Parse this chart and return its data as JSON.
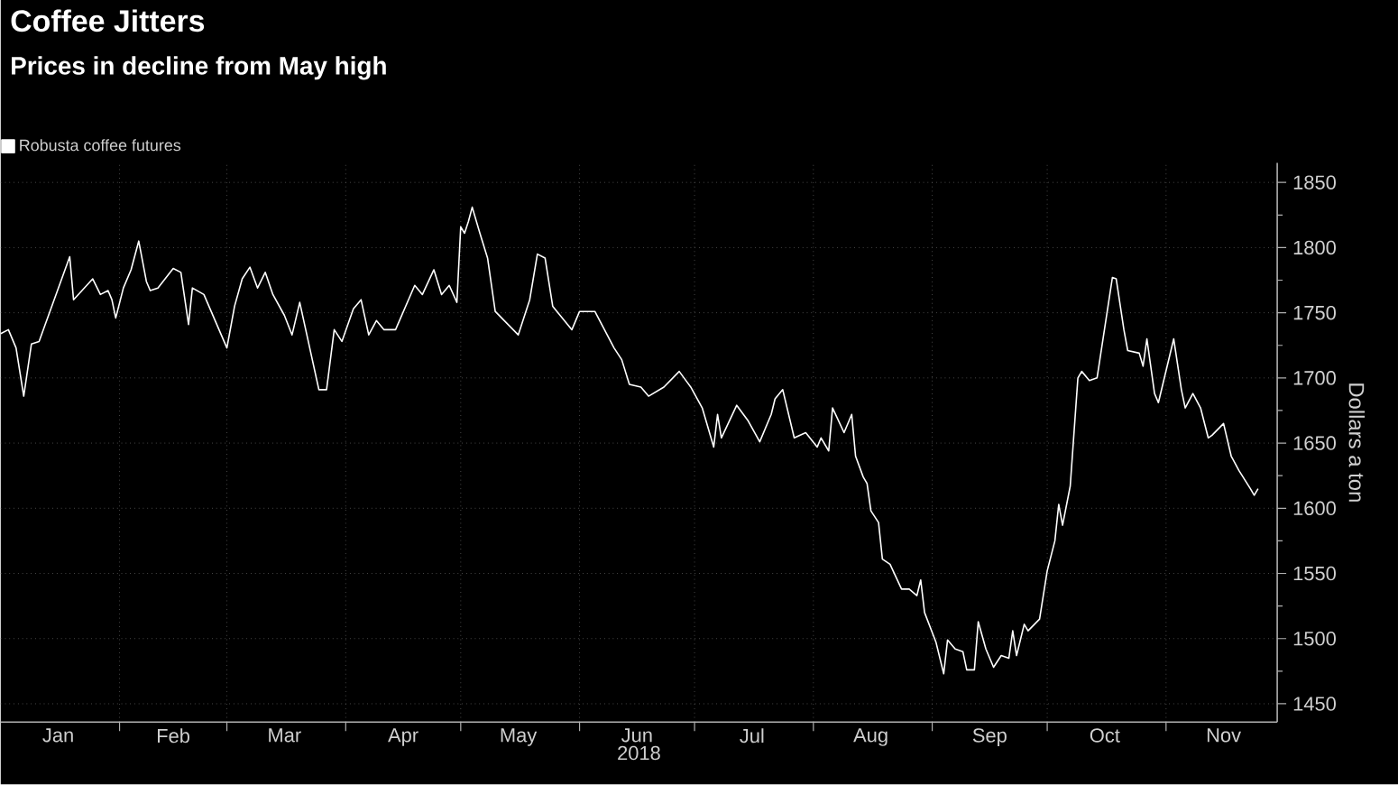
{
  "chart_data": {
    "type": "line",
    "title": "Coffee Jitters",
    "subtitle": "Prices in decline from May high",
    "xlabel": "2018",
    "ylabel": "Dollars a ton",
    "legend": "top left",
    "grid": true,
    "xlim": [
      "2018-01-01",
      "2018-11-30"
    ],
    "ylim": [
      1436,
      1865
    ],
    "xticks": [
      {
        "value": "2018-02-01",
        "label": null
      },
      {
        "value": "2018-03-01",
        "label": null
      },
      {
        "value": "2018-04-01",
        "label": null
      },
      {
        "value": "2018-05-01",
        "label": null
      },
      {
        "value": "2018-06-01",
        "label": null
      },
      {
        "value": "2018-07-01",
        "label": null
      },
      {
        "value": "2018-08-01",
        "label": null
      },
      {
        "value": "2018-09-01",
        "label": null
      },
      {
        "value": "2018-10-01",
        "label": null
      },
      {
        "value": "2018-11-01",
        "label": null
      },
      {
        "value": "2018-01-16",
        "label": "Jan"
      },
      {
        "value": "2018-02-15",
        "label": "Feb"
      },
      {
        "value": "2018-03-16",
        "label": "Mar"
      },
      {
        "value": "2018-04-16",
        "label": "Apr"
      },
      {
        "value": "2018-05-16",
        "label": "May"
      },
      {
        "value": "2018-06-16",
        "label": "Jun"
      },
      {
        "value": "2018-07-16",
        "label": "Jul"
      },
      {
        "value": "2018-08-16",
        "label": "Aug"
      },
      {
        "value": "2018-09-16",
        "label": "Sep"
      },
      {
        "value": "2018-10-16",
        "label": "Oct"
      },
      {
        "value": "2018-11-16",
        "label": "Nov"
      }
    ],
    "yticks": [
      1450,
      1500,
      1550,
      1600,
      1650,
      1700,
      1750,
      1800,
      1850,
      {
        "value": 1475,
        "label": null
      },
      {
        "value": 1525,
        "label": null
      },
      {
        "value": 1575,
        "label": null
      },
      {
        "value": 1625,
        "label": null
      },
      {
        "value": 1675,
        "label": null
      },
      {
        "value": 1725,
        "label": null
      },
      {
        "value": 1775,
        "label": null
      },
      {
        "value": 1825,
        "label": null
      }
    ],
    "x": [
      "2018-01-01",
      "2018-01-03",
      "2018-01-05",
      "2018-01-07",
      "2018-01-09",
      "2018-01-11",
      "2018-01-19",
      "2018-01-20",
      "2018-01-25",
      "2018-01-27",
      "2018-01-29",
      "2018-01-30",
      "2018-01-31",
      "2018-02-02",
      "2018-02-04",
      "2018-02-06",
      "2018-02-08",
      "2018-02-09",
      "2018-02-11",
      "2018-02-15",
      "2018-02-17",
      "2018-02-19",
      "2018-02-20",
      "2018-02-23",
      "2018-03-01",
      "2018-03-03",
      "2018-03-05",
      "2018-03-07",
      "2018-03-09",
      "2018-03-11",
      "2018-03-13",
      "2018-03-16",
      "2018-03-18",
      "2018-03-20",
      "2018-03-25",
      "2018-03-27",
      "2018-03-29",
      "2018-03-31",
      "2018-04-03",
      "2018-04-05",
      "2018-04-07",
      "2018-04-09",
      "2018-04-11",
      "2018-04-14",
      "2018-04-19",
      "2018-04-21",
      "2018-04-24",
      "2018-04-26",
      "2018-04-28",
      "2018-04-30",
      "2018-05-01",
      "2018-05-02",
      "2018-05-03",
      "2018-05-04",
      "2018-05-06",
      "2018-05-08",
      "2018-05-10",
      "2018-05-16",
      "2018-05-19",
      "2018-05-21",
      "2018-05-23",
      "2018-05-25",
      "2018-05-30",
      "2018-06-01",
      "2018-06-05",
      "2018-06-10",
      "2018-06-12",
      "2018-06-14",
      "2018-06-17",
      "2018-06-19",
      "2018-06-23",
      "2018-06-27",
      "2018-06-30",
      "2018-07-03",
      "2018-07-06",
      "2018-07-07",
      "2018-07-08",
      "2018-07-12",
      "2018-07-15",
      "2018-07-18",
      "2018-07-21",
      "2018-07-22",
      "2018-07-24",
      "2018-07-27",
      "2018-07-30",
      "2018-08-02",
      "2018-08-03",
      "2018-08-05",
      "2018-08-06",
      "2018-08-09",
      "2018-08-11",
      "2018-08-12",
      "2018-08-14",
      "2018-08-15",
      "2018-08-16",
      "2018-08-18",
      "2018-08-19",
      "2018-08-21",
      "2018-08-24",
      "2018-08-26",
      "2018-08-28",
      "2018-08-29",
      "2018-08-30",
      "2018-09-02",
      "2018-09-04",
      "2018-09-05",
      "2018-09-07",
      "2018-09-09",
      "2018-09-10",
      "2018-09-12",
      "2018-09-13",
      "2018-09-15",
      "2018-09-17",
      "2018-09-19",
      "2018-09-21",
      "2018-09-22",
      "2018-09-23",
      "2018-09-25",
      "2018-09-26",
      "2018-09-29",
      "2018-10-01",
      "2018-10-03",
      "2018-10-04",
      "2018-10-05",
      "2018-10-07",
      "2018-10-09",
      "2018-10-10",
      "2018-10-12",
      "2018-10-14",
      "2018-10-18",
      "2018-10-19",
      "2018-10-21",
      "2018-10-22",
      "2018-10-25",
      "2018-10-26",
      "2018-10-27",
      "2018-10-29",
      "2018-10-30",
      "2018-11-03",
      "2018-11-05",
      "2018-11-06",
      "2018-11-08",
      "2018-11-10",
      "2018-11-12",
      "2018-11-13",
      "2018-11-16",
      "2018-11-18",
      "2018-11-20",
      "2018-11-23",
      "2018-11-24",
      "2018-11-25"
    ],
    "series": [
      {
        "name": "Robusta coffee futures",
        "color": "#ffffff",
        "values": [
          1734,
          1737,
          1723,
          1686,
          1726,
          1728,
          1793,
          1760,
          1776,
          1764,
          1767,
          1760,
          1746,
          1769,
          1783,
          1805,
          1774,
          1767,
          1769,
          1784,
          1781,
          1741,
          1769,
          1764,
          1723,
          1755,
          1776,
          1785,
          1769,
          1781,
          1764,
          1748,
          1733,
          1758,
          1691,
          1691,
          1737,
          1728,
          1753,
          1760,
          1733,
          1744,
          1737,
          1737,
          1771,
          1764,
          1783,
          1764,
          1771,
          1758,
          1816,
          1811,
          1820,
          1831,
          1811,
          1792,
          1751,
          1733,
          1760,
          1795,
          1792,
          1755,
          1737,
          1751,
          1751,
          1723,
          1714,
          1695,
          1693,
          1686,
          1693,
          1705,
          1693,
          1677,
          1647,
          1672,
          1654,
          1679,
          1667,
          1651,
          1672,
          1684,
          1691,
          1654,
          1658,
          1647,
          1654,
          1644,
          1677,
          1658,
          1672,
          1640,
          1624,
          1619,
          1598,
          1589,
          1561,
          1557,
          1538,
          1538,
          1533,
          1545,
          1520,
          1497,
          1473,
          1499,
          1492,
          1490,
          1476,
          1476,
          1513,
          1492,
          1478,
          1487,
          1485,
          1506,
          1487,
          1511,
          1506,
          1515,
          1552,
          1575,
          1603,
          1587,
          1617,
          1700,
          1705,
          1698,
          1700,
          1777,
          1776,
          1737,
          1721,
          1719,
          1709,
          1730,
          1688,
          1681,
          1730,
          1691,
          1677,
          1688,
          1677,
          1654,
          1656,
          1665,
          1640,
          1629,
          1615,
          1610,
          1615
        ]
      }
    ]
  }
}
